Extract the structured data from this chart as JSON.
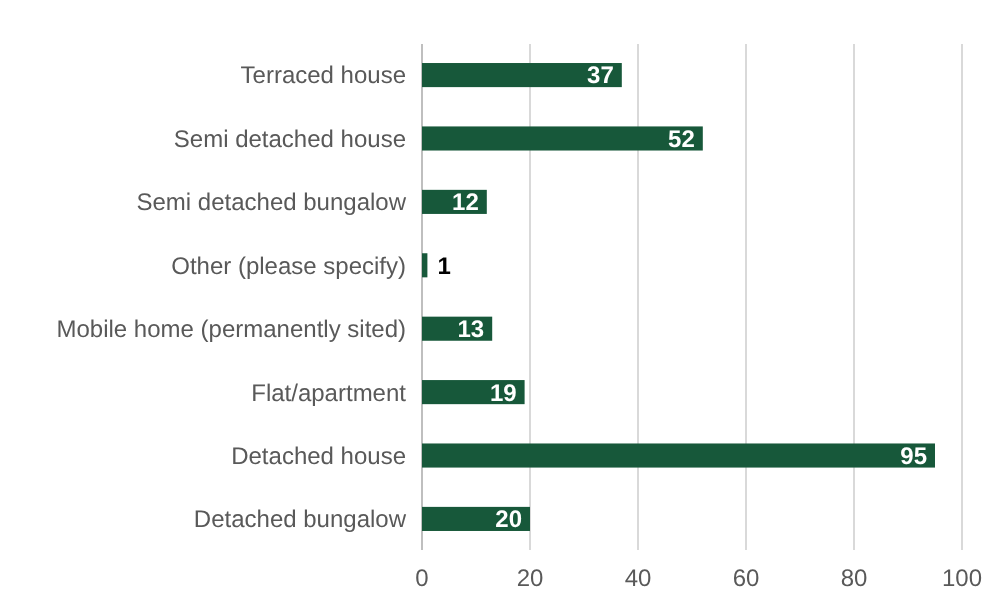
{
  "chart_data": {
    "type": "bar",
    "orientation": "horizontal",
    "categories": [
      "Terraced house",
      "Semi detached house",
      "Semi detached bungalow",
      "Other (please specify)",
      "Mobile home (permanently sited)",
      "Flat/apartment",
      "Detached house",
      "Detached bungalow"
    ],
    "values": [
      37,
      52,
      12,
      1,
      13,
      19,
      95,
      20
    ],
    "color": "#17583a",
    "xlim": [
      0,
      100
    ],
    "xticks": [
      0,
      20,
      40,
      60,
      80,
      100
    ],
    "grid": "x",
    "data_labels": true
  }
}
